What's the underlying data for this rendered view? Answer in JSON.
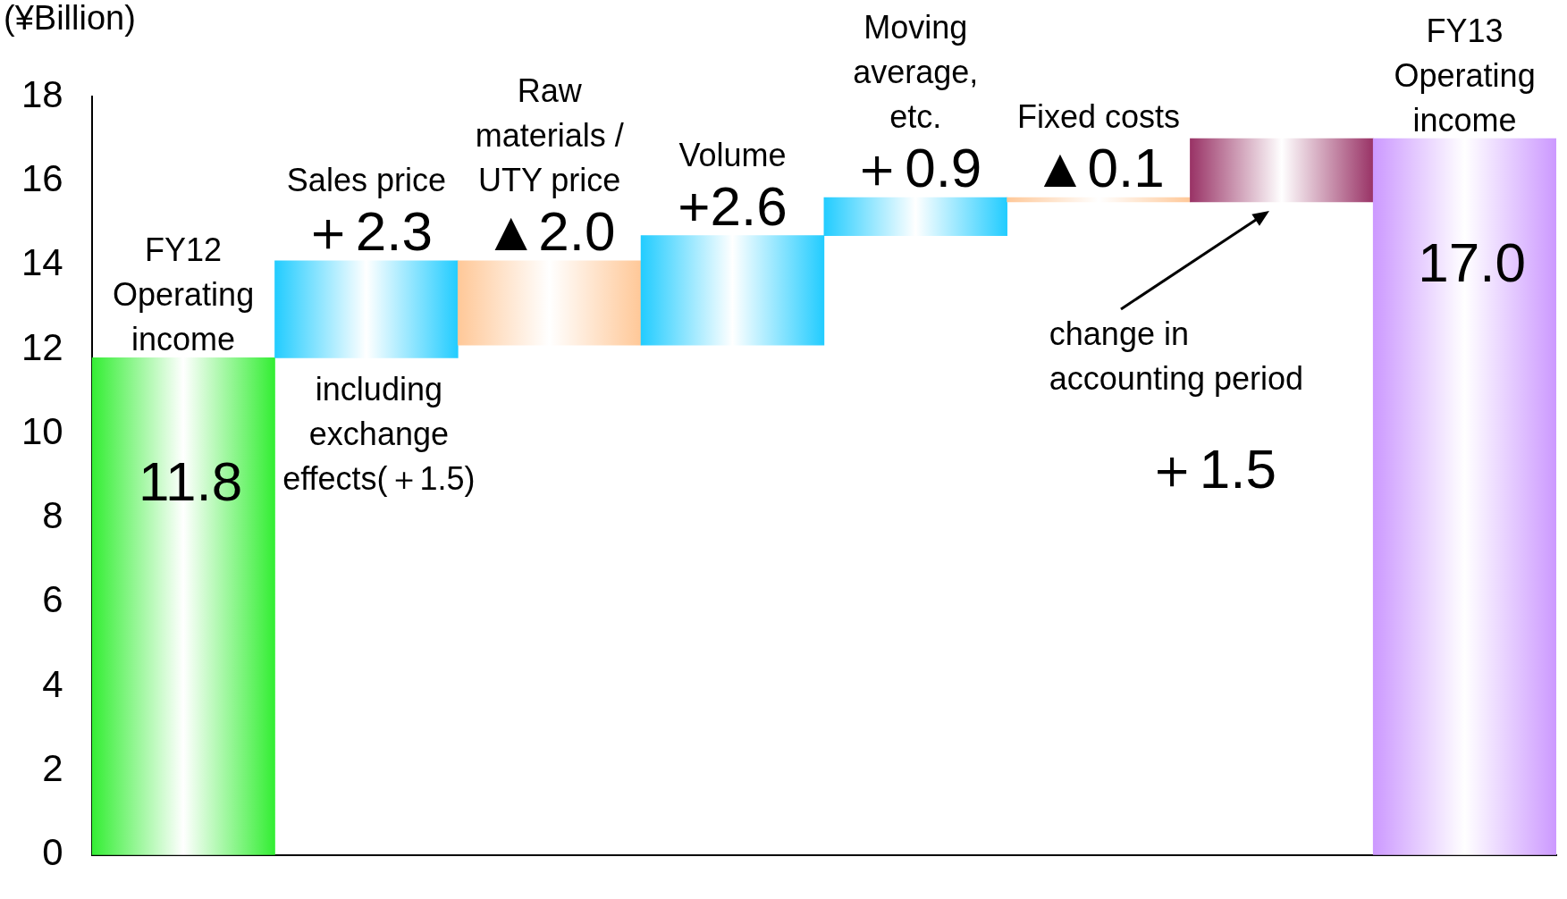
{
  "chart_data": {
    "type": "bar",
    "ylabel": "(¥Billion)",
    "categories": [
      "FY12 Operating income",
      "Sales price",
      "Raw materials / UTY price",
      "Volume",
      "Moving average, etc.",
      "Fixed costs",
      null,
      "FY13 Operating income"
    ],
    "values": [
      11.8,
      2.3,
      -2.0,
      2.6,
      0.9,
      -0.1,
      1.5,
      17.0
    ],
    "base": [
      0,
      11.8,
      14.1,
      12.1,
      14.7,
      15.6,
      15.5,
      0
    ],
    "colors": [
      "#33ee33",
      "#22ccff",
      "#ffc898",
      "#22ccff",
      "#22ccff",
      "#ffc898",
      "#993366",
      "#cc99ff"
    ],
    "value_labels": [
      "11.8",
      "＋2.3",
      "▲2.0",
      "+2.6",
      "＋0.9",
      "▲0.1",
      null,
      "17.0"
    ],
    "annotations": [
      "including exchange effects(＋1.5)",
      "change in accounting period",
      "＋1.5"
    ],
    "ylim": [
      0,
      18
    ],
    "yticks": [
      0,
      2,
      4,
      6,
      8,
      10,
      12,
      14,
      16,
      18
    ],
    "grid": false,
    "legend": false
  }
}
